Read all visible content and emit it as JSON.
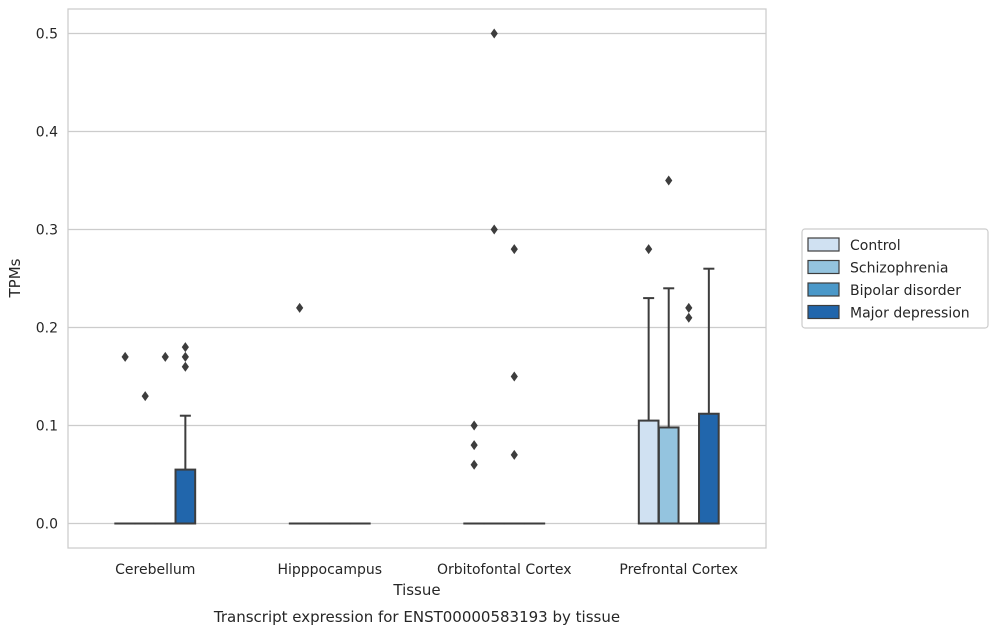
{
  "chart_data": {
    "type": "boxplot",
    "caption": "Transcript expression for ENST00000583193 by tissue",
    "xlabel": "Tissue",
    "ylabel": "TPMs",
    "ylim": [
      -0.025,
      0.525
    ],
    "yticks": [
      0.0,
      0.1,
      0.2,
      0.3,
      0.4,
      0.5
    ],
    "ytick_labels": [
      "0.0",
      "0.1",
      "0.2",
      "0.3",
      "0.4",
      "0.5"
    ],
    "grid": "horizontal",
    "legend_position": "right, outside plot",
    "categories": [
      "Cerebellum",
      "Hipppocampus",
      "Orbitofontal Cortex",
      "Prefrontal Cortex"
    ],
    "series": [
      {
        "name": "Control",
        "color": "#d0e1f2",
        "boxes": [
          {
            "q1": 0,
            "median": 0,
            "q3": 0,
            "whisker_low": 0,
            "whisker_high": 0,
            "outliers": [
              0.17
            ]
          },
          {
            "q1": 0,
            "median": 0,
            "q3": 0,
            "whisker_low": 0,
            "whisker_high": 0,
            "outliers": [
              0.22
            ]
          },
          {
            "q1": 0,
            "median": 0,
            "q3": 0,
            "whisker_low": 0,
            "whisker_high": 0,
            "outliers": [
              0.1,
              0.08,
              0.06
            ]
          },
          {
            "q1": 0,
            "median": 0,
            "q3": 0.105,
            "whisker_low": 0,
            "whisker_high": 0.23,
            "outliers": [
              0.28
            ]
          }
        ]
      },
      {
        "name": "Schizophrenia",
        "color": "#94c4df",
        "boxes": [
          {
            "q1": 0,
            "median": 0,
            "q3": 0,
            "whisker_low": 0,
            "whisker_high": 0,
            "outliers": [
              0.13
            ]
          },
          {
            "q1": 0,
            "median": 0,
            "q3": 0,
            "whisker_low": 0,
            "whisker_high": 0,
            "outliers": []
          },
          {
            "q1": 0,
            "median": 0,
            "q3": 0,
            "whisker_low": 0,
            "whisker_high": 0,
            "outliers": [
              0.5,
              0.3
            ]
          },
          {
            "q1": 0,
            "median": 0,
            "q3": 0.098,
            "whisker_low": 0,
            "whisker_high": 0.24,
            "outliers": [
              0.35
            ]
          }
        ]
      },
      {
        "name": "Bipolar disorder",
        "color": "#4a98c9",
        "boxes": [
          {
            "q1": 0,
            "median": 0,
            "q3": 0,
            "whisker_low": 0,
            "whisker_high": 0,
            "outliers": [
              0.17
            ]
          },
          {
            "q1": 0,
            "median": 0,
            "q3": 0,
            "whisker_low": 0,
            "whisker_high": 0,
            "outliers": []
          },
          {
            "q1": 0,
            "median": 0,
            "q3": 0,
            "whisker_low": 0,
            "whisker_high": 0,
            "outliers": [
              0.28,
              0.15,
              0.07
            ]
          },
          {
            "q1": 0,
            "median": 0,
            "q3": 0,
            "whisker_low": 0,
            "whisker_high": 0,
            "outliers": [
              0.22,
              0.21
            ]
          }
        ]
      },
      {
        "name": "Major depression",
        "color": "#2166ac",
        "boxes": [
          {
            "q1": 0,
            "median": 0,
            "q3": 0.055,
            "whisker_low": 0,
            "whisker_high": 0.11,
            "outliers": [
              0.18,
              0.17,
              0.16
            ]
          },
          {
            "q1": 0,
            "median": 0,
            "q3": 0,
            "whisker_low": 0,
            "whisker_high": 0,
            "outliers": []
          },
          {
            "q1": 0,
            "median": 0,
            "q3": 0,
            "whisker_low": 0,
            "whisker_high": 0,
            "outliers": []
          },
          {
            "q1": 0,
            "median": 0,
            "q3": 0.112,
            "whisker_low": 0,
            "whisker_high": 0.26,
            "outliers": []
          }
        ]
      }
    ]
  }
}
